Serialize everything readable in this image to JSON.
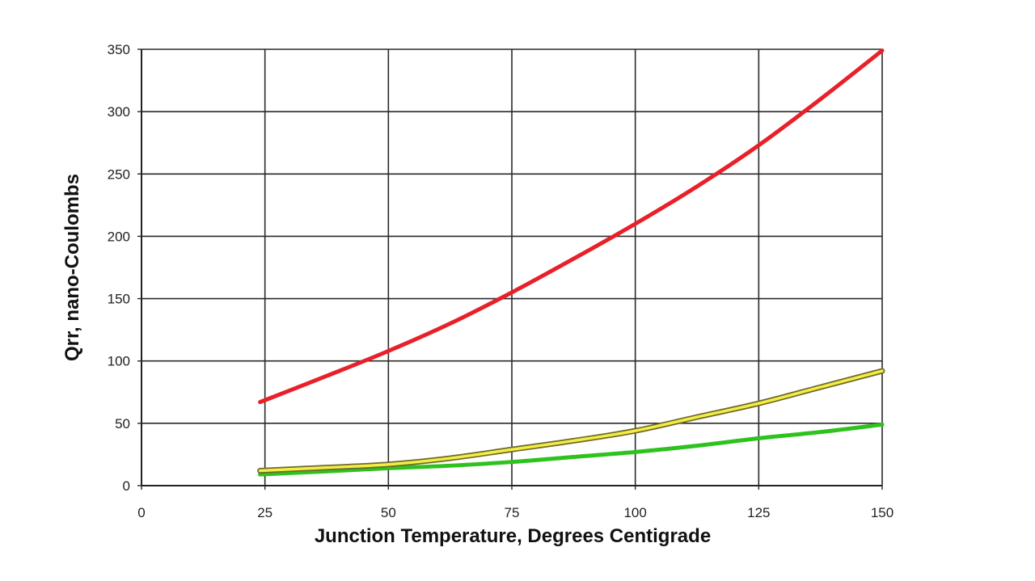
{
  "chart_data": {
    "type": "line",
    "title": "",
    "xlabel": "Junction Temperature, Degrees Centigrade",
    "ylabel": "Qrr,  nano-Coulombs",
    "xlim": [
      0,
      150
    ],
    "ylim": [
      0,
      350
    ],
    "x_ticks": [
      0,
      25,
      50,
      75,
      100,
      125,
      150
    ],
    "y_ticks": [
      0,
      50,
      100,
      150,
      200,
      250,
      300,
      350
    ],
    "grid": true,
    "legend": "none",
    "series": [
      {
        "color": "#e8202a",
        "x": [
          24,
          37.5,
          50,
          62.5,
          75,
          87.5,
          100,
          112.5,
          125,
          137.5,
          150
        ],
        "y": [
          67,
          88,
          108,
          130,
          155,
          182,
          210,
          240,
          273,
          310,
          349
        ]
      },
      {
        "color": "#f2ee45",
        "outline": "#6f6a2a",
        "x": [
          24,
          37.5,
          50,
          62.5,
          75,
          87.5,
          100,
          112.5,
          125,
          137.5,
          150
        ],
        "y": [
          12,
          14.5,
          17,
          22,
          29,
          36,
          44,
          55,
          66,
          79,
          92
        ]
      },
      {
        "color": "#2ec21e",
        "x": [
          24,
          37.5,
          50,
          62.5,
          75,
          87.5,
          100,
          112.5,
          125,
          137.5,
          150
        ],
        "y": [
          9,
          11.5,
          14,
          16,
          19,
          23,
          27,
          32,
          38,
          43,
          49
        ]
      }
    ]
  }
}
